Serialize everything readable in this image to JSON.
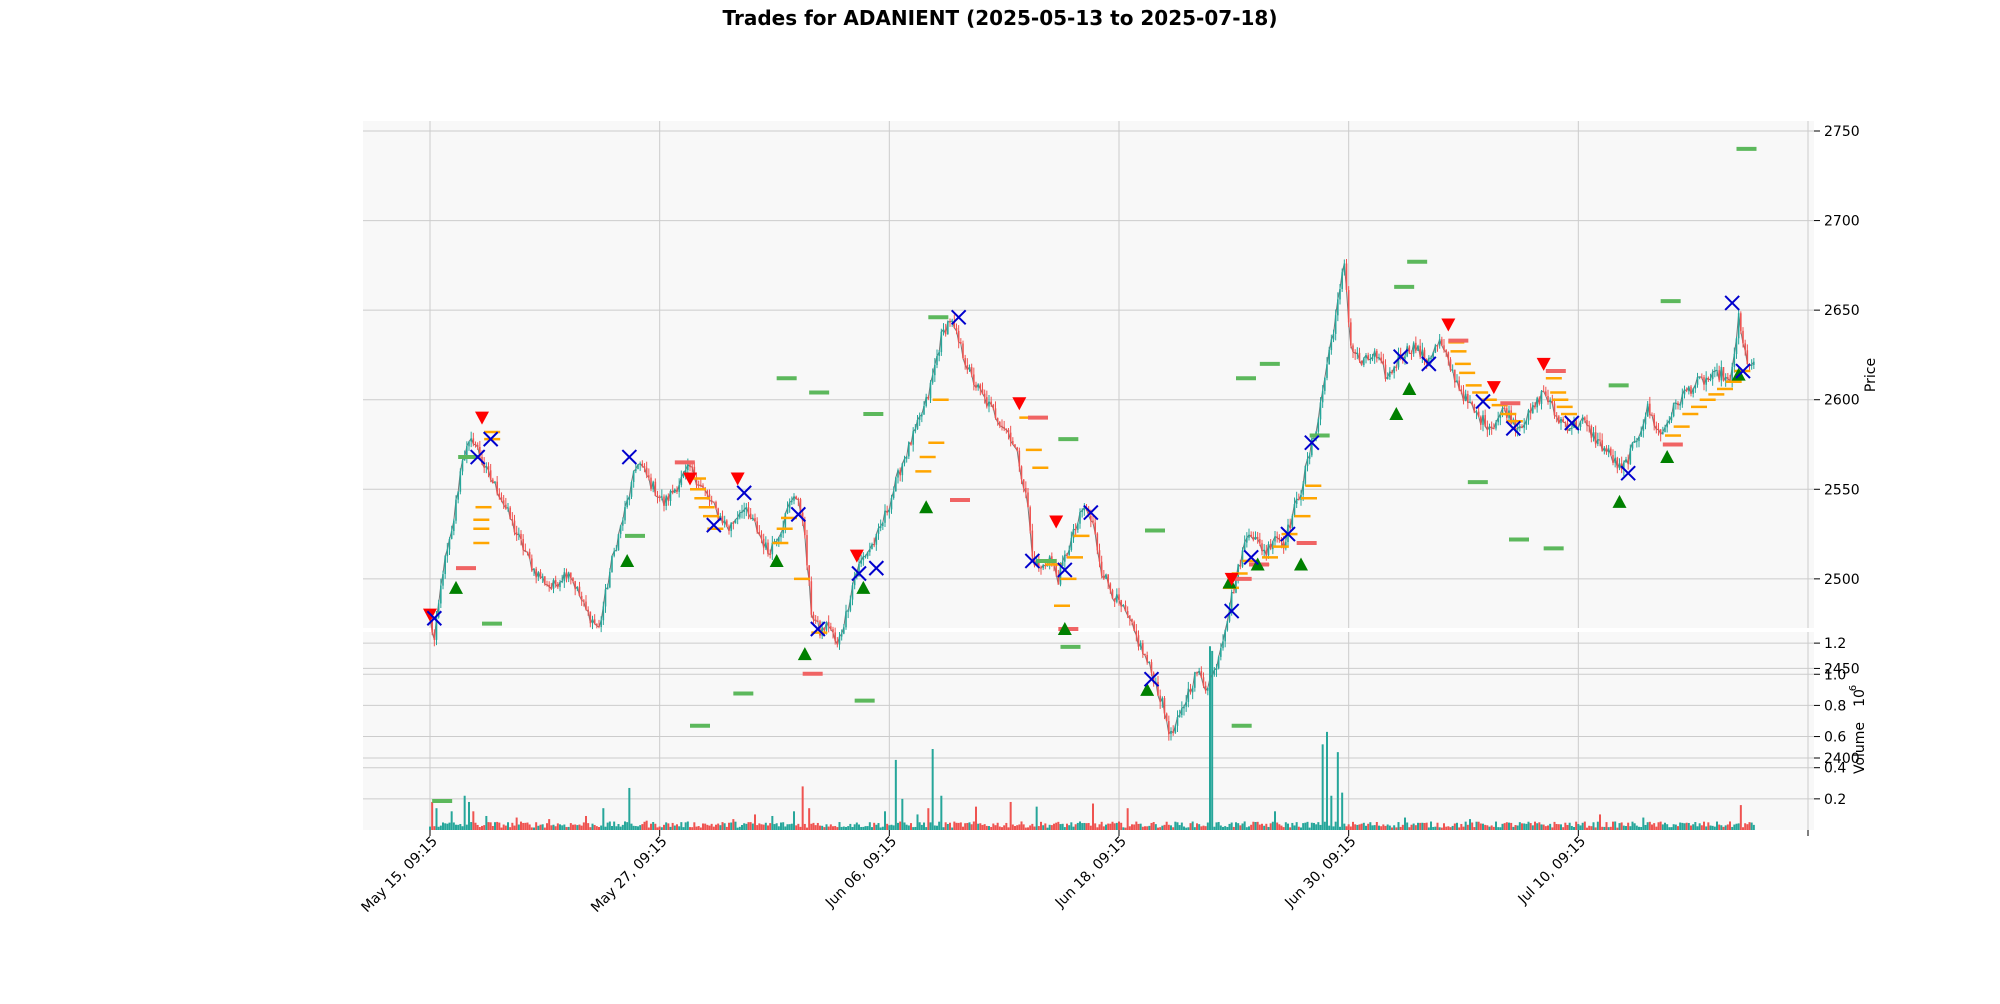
{
  "chart_data": {
    "type": "candlestick",
    "title": "Trades for ADANIENT (2025-05-13 to 2025-07-18)",
    "price_panel": {
      "ylabel": "Price",
      "ylim": [
        2355,
        2760
      ],
      "yticks": [
        2400,
        2450,
        2500,
        2550,
        2600,
        2650,
        2700,
        2750
      ],
      "grid": true,
      "anchors": [
        [
          0,
          2478
        ],
        [
          2,
          2465
        ],
        [
          6,
          2505
        ],
        [
          10,
          2525
        ],
        [
          15,
          2568
        ],
        [
          20,
          2578
        ],
        [
          26,
          2560
        ],
        [
          32,
          2548
        ],
        [
          40,
          2525
        ],
        [
          48,
          2505
        ],
        [
          56,
          2495
        ],
        [
          64,
          2505
        ],
        [
          72,
          2482
        ],
        [
          78,
          2472
        ],
        [
          84,
          2510
        ],
        [
          90,
          2538
        ],
        [
          96,
          2566
        ],
        [
          102,
          2553
        ],
        [
          108,
          2542
        ],
        [
          114,
          2552
        ],
        [
          120,
          2562
        ],
        [
          126,
          2550
        ],
        [
          132,
          2538
        ],
        [
          138,
          2528
        ],
        [
          144,
          2540
        ],
        [
          150,
          2530
        ],
        [
          156,
          2515
        ],
        [
          162,
          2528
        ],
        [
          168,
          2548
        ],
        [
          172,
          2535
        ],
        [
          176,
          2482
        ],
        [
          180,
          2470
        ],
        [
          184,
          2475
        ],
        [
          188,
          2462
        ],
        [
          192,
          2480
        ],
        [
          196,
          2502
        ],
        [
          200,
          2512
        ],
        [
          206,
          2522
        ],
        [
          212,
          2542
        ],
        [
          218,
          2565
        ],
        [
          224,
          2582
        ],
        [
          230,
          2602
        ],
        [
          236,
          2635
        ],
        [
          240,
          2645
        ],
        [
          244,
          2632
        ],
        [
          250,
          2612
        ],
        [
          256,
          2600
        ],
        [
          262,
          2590
        ],
        [
          268,
          2580
        ],
        [
          272,
          2565
        ],
        [
          276,
          2540
        ],
        [
          278,
          2512
        ],
        [
          282,
          2505
        ],
        [
          286,
          2512
        ],
        [
          290,
          2500
        ],
        [
          294,
          2515
        ],
        [
          298,
          2528
        ],
        [
          302,
          2540
        ],
        [
          306,
          2530
        ],
        [
          310,
          2505
        ],
        [
          316,
          2490
        ],
        [
          322,
          2478
        ],
        [
          328,
          2462
        ],
        [
          334,
          2445
        ],
        [
          338,
          2430
        ],
        [
          342,
          2412
        ],
        [
          346,
          2422
        ],
        [
          350,
          2437
        ],
        [
          354,
          2448
        ],
        [
          358,
          2440
        ],
        [
          362,
          2448
        ],
        [
          366,
          2468
        ],
        [
          370,
          2490
        ],
        [
          374,
          2510
        ],
        [
          378,
          2528
        ],
        [
          382,
          2520
        ],
        [
          386,
          2515
        ],
        [
          390,
          2525
        ],
        [
          394,
          2520
        ],
        [
          398,
          2535
        ],
        [
          402,
          2550
        ],
        [
          406,
          2570
        ],
        [
          410,
          2590
        ],
        [
          414,
          2620
        ],
        [
          417,
          2640
        ],
        [
          420,
          2660
        ],
        [
          422,
          2677
        ],
        [
          425,
          2630
        ],
        [
          430,
          2620
        ],
        [
          436,
          2625
        ],
        [
          442,
          2612
        ],
        [
          448,
          2625
        ],
        [
          454,
          2630
        ],
        [
          460,
          2622
        ],
        [
          466,
          2632
        ],
        [
          472,
          2615
        ],
        [
          478,
          2600
        ],
        [
          484,
          2590
        ],
        [
          490,
          2585
        ],
        [
          496,
          2595
        ],
        [
          502,
          2585
        ],
        [
          508,
          2592
        ],
        [
          514,
          2605
        ],
        [
          520,
          2590
        ],
        [
          526,
          2585
        ],
        [
          532,
          2588
        ],
        [
          538,
          2578
        ],
        [
          544,
          2570
        ],
        [
          550,
          2560
        ],
        [
          556,
          2575
        ],
        [
          562,
          2595
        ],
        [
          568,
          2580
        ],
        [
          574,
          2595
        ],
        [
          580,
          2605
        ],
        [
          586,
          2610
        ],
        [
          592,
          2612
        ],
        [
          596,
          2615
        ],
        [
          600,
          2608
        ],
        [
          604,
          2645
        ],
        [
          606,
          2630
        ],
        [
          608,
          2622
        ],
        [
          610,
          2618
        ]
      ]
    },
    "volume_panel": {
      "ylabel": "Volume",
      "exponent": "6",
      "ylim": [
        0,
        1.22
      ],
      "yticks": [
        0.2,
        0.4,
        0.6,
        0.8,
        1.0,
        1.2
      ],
      "yticklabels": [
        "0.2",
        "0.4",
        "0.6",
        "0.8",
        "1.0",
        "1.2"
      ],
      "spikes": [
        [
          1,
          0.18
        ],
        [
          3,
          0.14
        ],
        [
          10,
          0.12
        ],
        [
          16,
          0.22
        ],
        [
          18,
          0.18
        ],
        [
          20,
          0.12
        ],
        [
          26,
          0.09
        ],
        [
          40,
          0.08
        ],
        [
          55,
          0.07
        ],
        [
          72,
          0.09
        ],
        [
          80,
          0.14
        ],
        [
          92,
          0.27
        ],
        [
          100,
          0.06
        ],
        [
          140,
          0.07
        ],
        [
          150,
          0.1
        ],
        [
          158,
          0.09
        ],
        [
          168,
          0.12
        ],
        [
          172,
          0.28
        ],
        [
          175,
          0.14
        ],
        [
          210,
          0.12
        ],
        [
          215,
          0.45
        ],
        [
          218,
          0.2
        ],
        [
          225,
          0.1
        ],
        [
          230,
          0.14
        ],
        [
          232,
          0.52
        ],
        [
          236,
          0.22
        ],
        [
          252,
          0.15
        ],
        [
          268,
          0.18
        ],
        [
          280,
          0.15
        ],
        [
          306,
          0.17
        ],
        [
          322,
          0.14
        ],
        [
          360,
          1.18
        ],
        [
          361,
          1.15
        ],
        [
          390,
          0.12
        ],
        [
          412,
          0.55
        ],
        [
          414,
          0.63
        ],
        [
          416,
          0.22
        ],
        [
          419,
          0.5
        ],
        [
          421,
          0.24
        ],
        [
          450,
          0.08
        ],
        [
          480,
          0.07
        ],
        [
          540,
          0.1
        ],
        [
          560,
          0.08
        ],
        [
          605,
          0.16
        ]
      ]
    },
    "xlabels": [
      "May 15, 09:15",
      "May 27, 09:15",
      "Jun 06, 09:15",
      "Jun 18, 09:15",
      "Jun 30, 09:15",
      "Jul 10, 09:15"
    ],
    "xticks": [
      0,
      106,
      212,
      318,
      424,
      530,
      636
    ],
    "n_bars": 612,
    "markers": {
      "buy": [
        [
          12,
          2495
        ],
        [
          91,
          2510
        ],
        [
          160,
          2510
        ],
        [
          173,
          2458
        ],
        [
          200,
          2495
        ],
        [
          229,
          2540
        ],
        [
          293,
          2472
        ],
        [
          331,
          2438
        ],
        [
          369,
          2498
        ],
        [
          382,
          2508
        ],
        [
          402,
          2508
        ],
        [
          446,
          2592
        ],
        [
          452,
          2606
        ],
        [
          549,
          2543
        ],
        [
          571,
          2568
        ],
        [
          604,
          2614
        ]
      ],
      "sell": [
        [
          0,
          2480
        ],
        [
          24,
          2590
        ],
        [
          120,
          2556
        ],
        [
          142,
          2556
        ],
        [
          197,
          2513
        ],
        [
          272,
          2598
        ],
        [
          289,
          2532
        ],
        [
          370,
          2500
        ],
        [
          470,
          2642
        ],
        [
          491,
          2607
        ],
        [
          514,
          2620
        ]
      ],
      "exit": [
        [
          2,
          2478
        ],
        [
          22,
          2568
        ],
        [
          28,
          2578
        ],
        [
          92,
          2568
        ],
        [
          131,
          2530
        ],
        [
          145,
          2548
        ],
        [
          170,
          2536
        ],
        [
          179,
          2472
        ],
        [
          198,
          2503
        ],
        [
          206,
          2506
        ],
        [
          244,
          2646
        ],
        [
          278,
          2510
        ],
        [
          293,
          2505
        ],
        [
          305,
          2537
        ],
        [
          333,
          2444
        ],
        [
          370,
          2482
        ],
        [
          379,
          2512
        ],
        [
          396,
          2525
        ],
        [
          407,
          2576
        ],
        [
          448,
          2624
        ],
        [
          461,
          2620
        ],
        [
          486,
          2599
        ],
        [
          500,
          2584
        ],
        [
          527,
          2587
        ],
        [
          553,
          2559
        ],
        [
          601,
          2654
        ],
        [
          606,
          2616
        ]
      ]
    },
    "levels": {
      "orange": [
        [
          20,
          2533
        ],
        [
          20,
          2520
        ],
        [
          20,
          2528
        ],
        [
          21,
          2540
        ],
        [
          25,
          2578
        ],
        [
          25,
          2582
        ],
        [
          120,
          2556
        ],
        [
          120,
          2550
        ],
        [
          122,
          2545
        ],
        [
          124,
          2540
        ],
        [
          126,
          2535
        ],
        [
          128,
          2528
        ],
        [
          158,
          2520
        ],
        [
          160,
          2528
        ],
        [
          162,
          2534
        ],
        [
          168,
          2500
        ],
        [
          176,
          2470
        ],
        [
          224,
          2560
        ],
        [
          226,
          2568
        ],
        [
          230,
          2576
        ],
        [
          232,
          2600
        ],
        [
          272,
          2590
        ],
        [
          275,
          2572
        ],
        [
          278,
          2562
        ],
        [
          284,
          2508
        ],
        [
          288,
          2485
        ],
        [
          291,
          2500
        ],
        [
          294,
          2512
        ],
        [
          297,
          2524
        ],
        [
          366,
          2495
        ],
        [
          370,
          2503
        ],
        [
          375,
          2510
        ],
        [
          380,
          2508
        ],
        [
          384,
          2512
        ],
        [
          389,
          2518
        ],
        [
          393,
          2525
        ],
        [
          399,
          2535
        ],
        [
          402,
          2545
        ],
        [
          404,
          2552
        ],
        [
          470,
          2632
        ],
        [
          471,
          2627
        ],
        [
          473,
          2620
        ],
        [
          475,
          2615
        ],
        [
          478,
          2608
        ],
        [
          481,
          2604
        ],
        [
          485,
          2600
        ],
        [
          490,
          2597
        ],
        [
          494,
          2592
        ],
        [
          497,
          2588
        ],
        [
          515,
          2612
        ],
        [
          517,
          2604
        ],
        [
          518,
          2600
        ],
        [
          520,
          2596
        ],
        [
          522,
          2592
        ],
        [
          570,
          2580
        ],
        [
          574,
          2585
        ],
        [
          578,
          2592
        ],
        [
          582,
          2596
        ],
        [
          586,
          2600
        ],
        [
          590,
          2603
        ],
        [
          594,
          2606
        ],
        [
          598,
          2610
        ],
        [
          602,
          2616
        ]
      ],
      "green": [
        [
          1,
          2376
        ],
        [
          13,
          2568
        ],
        [
          24,
          2475
        ],
        [
          90,
          2524
        ],
        [
          120,
          2418
        ],
        [
          140,
          2436
        ],
        [
          160,
          2612
        ],
        [
          175,
          2604
        ],
        [
          196,
          2432
        ],
        [
          200,
          2592
        ],
        [
          230,
          2646
        ],
        [
          280,
          2510
        ],
        [
          290,
          2578
        ],
        [
          291,
          2462
        ],
        [
          330,
          2527
        ],
        [
          370,
          2418
        ],
        [
          372,
          2612
        ],
        [
          383,
          2620
        ],
        [
          406,
          2580
        ],
        [
          445,
          2663
        ],
        [
          451,
          2677
        ],
        [
          479,
          2554
        ],
        [
          498,
          2522
        ],
        [
          514,
          2517
        ],
        [
          544,
          2608
        ],
        [
          568,
          2655
        ],
        [
          603,
          2740
        ]
      ],
      "red": [
        [
          12,
          2506
        ],
        [
          113,
          2565
        ],
        [
          172,
          2447
        ],
        [
          240,
          2544
        ],
        [
          276,
          2590
        ],
        [
          290,
          2472
        ],
        [
          370,
          2500
        ],
        [
          378,
          2508
        ],
        [
          400,
          2520
        ],
        [
          470,
          2633
        ],
        [
          494,
          2598
        ],
        [
          515,
          2616
        ],
        [
          569,
          2575
        ]
      ]
    },
    "colors": {
      "up": "#26a69a",
      "down": "#ef5350",
      "buy": "#008000",
      "sell": "#ff0000",
      "exit": "#0000cd",
      "orange": "#ffa500",
      "green_level": "#5cb85c",
      "red_level": "#f06464",
      "panel_bg": "#f8f8f8",
      "grid": "#cccccc"
    }
  }
}
